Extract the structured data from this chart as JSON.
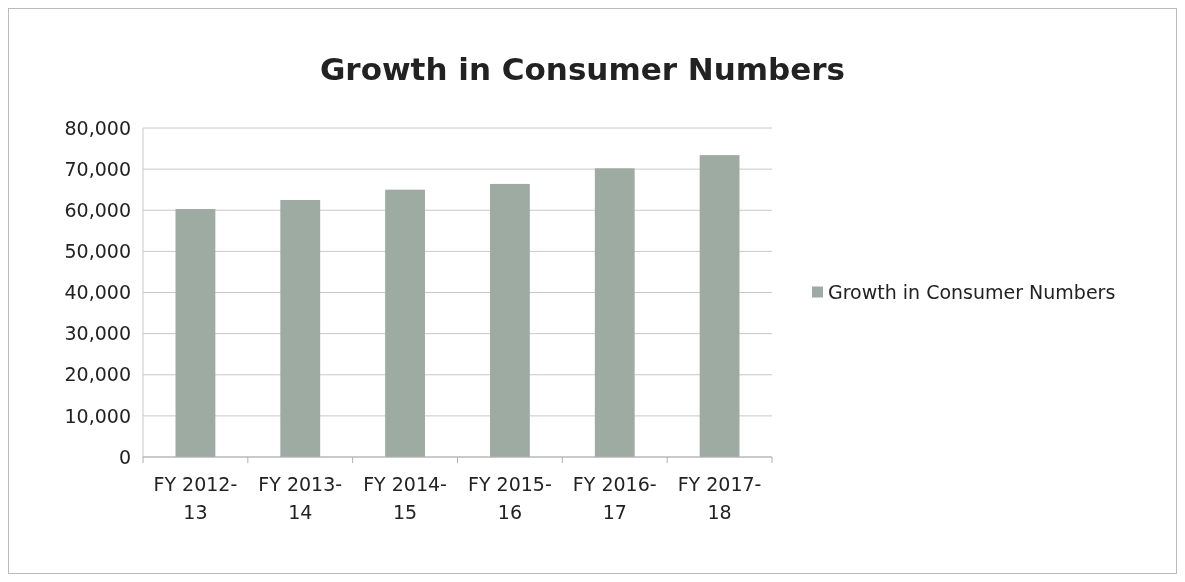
{
  "chart_data": {
    "type": "bar",
    "title": "Growth in Consumer Numbers",
    "categories": [
      "FY 2012-13",
      "FY 2013-14",
      "FY 2014-15",
      "FY 2015-16",
      "FY 2016-17",
      "FY 2017-18"
    ],
    "series": [
      {
        "name": "Growth in Consumer Numbers",
        "color": "#9eaba2",
        "values": [
          60300,
          62500,
          65000,
          66400,
          70200,
          73400
        ]
      }
    ],
    "ylim": [
      0,
      80000
    ],
    "yticks": [
      {
        "value": 0,
        "label": "0"
      },
      {
        "value": 10000,
        "label": "10,000"
      },
      {
        "value": 20000,
        "label": "20,000"
      },
      {
        "value": 30000,
        "label": "30,000"
      },
      {
        "value": 40000,
        "label": "40,000"
      },
      {
        "value": 50000,
        "label": "50,000"
      },
      {
        "value": 60000,
        "label": "60,000"
      },
      {
        "value": 70000,
        "label": "70,000"
      },
      {
        "value": 80000,
        "label": "80,000"
      }
    ],
    "grid": "y",
    "legend": "right"
  }
}
